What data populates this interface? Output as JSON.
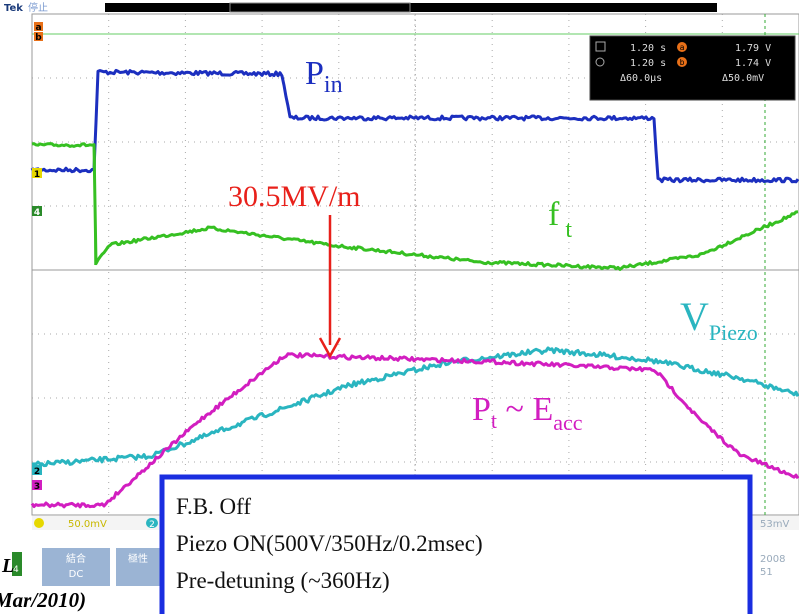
{
  "header": {
    "brand": "Tek",
    "status": "停止"
  },
  "cursors": {
    "row1": {
      "time": "1.20 s",
      "marker": "a",
      "value": "1.79 V"
    },
    "row2": {
      "time": "1.20 s",
      "marker": "b",
      "value": "1.74 V"
    },
    "delta": {
      "time": "Δ60.0µs",
      "value": "Δ50.0mV"
    }
  },
  "channels": {
    "ch1": "1",
    "ch2": "2",
    "ch3": "3",
    "ch4": "4",
    "a": "a",
    "b": "b"
  },
  "labels": {
    "p_in": {
      "main": "P",
      "sub": "in"
    },
    "field": "30.5MV/m",
    "f_t": {
      "main": "f",
      "sub": "t"
    },
    "v_piezo": {
      "main": "V",
      "sub": "Piezo"
    },
    "p_t": {
      "main": "P",
      "sub": "t",
      "middle": " ~ E",
      "sub2": "acc"
    }
  },
  "bottom_bar": {
    "ch1_scale": "50.0mV",
    "ch2": "2",
    "right_scale": "53mV",
    "coupling": "結合",
    "coupling_value": "DC",
    "polarity": "極性",
    "year": "2008",
    "minute": "51"
  },
  "footer": {
    "left_top": "L",
    "left_sub": "4",
    "left_bottom": "Mar/2010)"
  },
  "note_box": {
    "lines": [
      "F.B. Off",
      "Piezo ON(500V/350Hz/0.2msec)",
      "Pre-detuning (~360Hz)"
    ]
  }
}
